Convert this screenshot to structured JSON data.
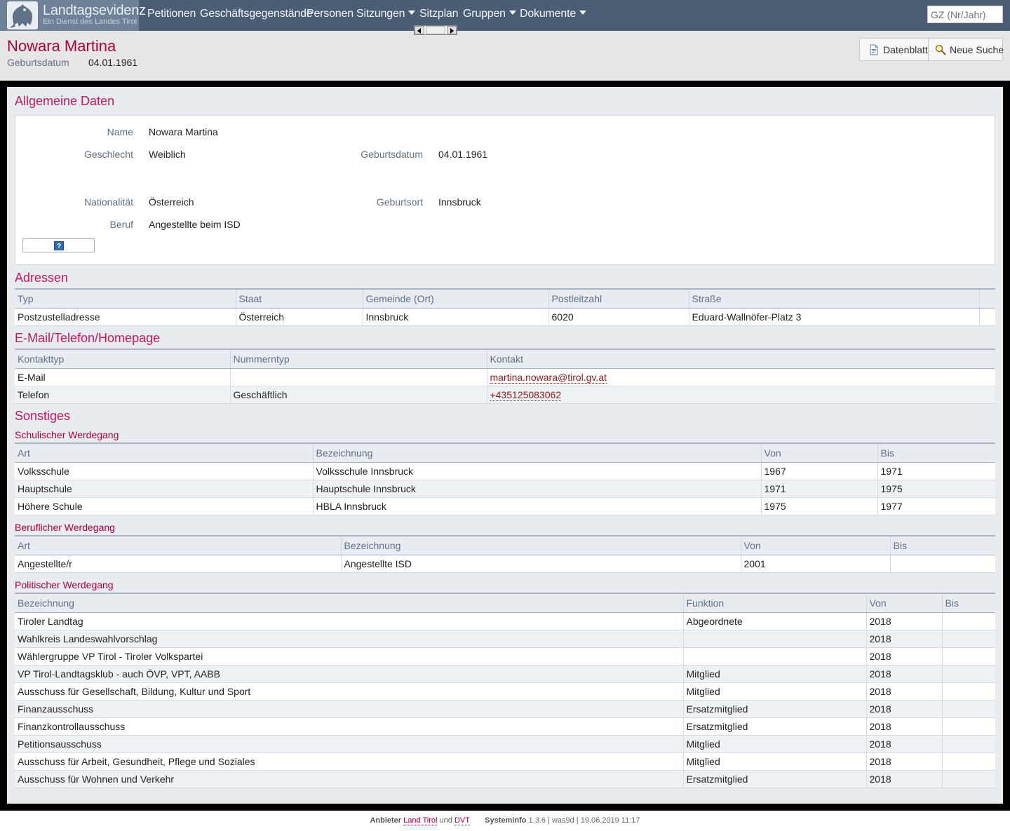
{
  "brand": {
    "title": "Landtagsevidenz",
    "subtitle": "Ein Dienst des Landes Tirol"
  },
  "nav": {
    "items": [
      {
        "label": "Petitionen",
        "dropdown": false
      },
      {
        "label": "Geschäftsgegenstände",
        "dropdown": false
      },
      {
        "label": "Personen",
        "dropdown": false
      },
      {
        "label": "Sitzungen",
        "dropdown": true
      },
      {
        "label": "Sitzplan",
        "dropdown": false
      },
      {
        "label": "Gruppen",
        "dropdown": true
      },
      {
        "label": "Dokumente",
        "dropdown": true
      }
    ],
    "search_placeholder": "GZ (Nr/Jahr)"
  },
  "header": {
    "name": "Nowara Martina",
    "birth_label": "Geburtsdatum",
    "birth_value": "04.01.1961",
    "btn_datenblatt": "Datenblatt",
    "btn_neue_suche": "Neue Suche"
  },
  "allgemein": {
    "title": "Allgemeine Daten",
    "name_label": "Name",
    "name_value": "Nowara Martina",
    "geschlecht_label": "Geschlecht",
    "geschlecht_value": "Weiblich",
    "geburtsdatum_label": "Geburtsdatum",
    "geburtsdatum_value": "04.01.1961",
    "nationalitaet_label": "Nationalität",
    "nationalitaet_value": "Österreich",
    "geburtsort_label": "Geburtsort",
    "geburtsort_value": "Innsbruck",
    "beruf_label": "Beruf",
    "beruf_value": "Angestellte beim ISD",
    "help": "?"
  },
  "adressen": {
    "title": "Adressen",
    "headers": [
      "Typ",
      "Staat",
      "Gemeinde (Ort)",
      "Postleitzahl",
      "Straße"
    ],
    "rows": [
      [
        "Postzustelladresse",
        "Österreich",
        "Innsbruck",
        "6020",
        "Eduard-Wallnöfer-Platz 3"
      ]
    ]
  },
  "kontakt": {
    "title": "E-Mail/Telefon/Homepage",
    "headers": [
      "Kontakttyp",
      "Nummerntyp",
      "Kontakt"
    ],
    "rows": [
      [
        "E-Mail",
        "",
        "martina.nowara@tirol.gv.at"
      ],
      [
        "Telefon",
        "Geschäftlich",
        "+435125083062"
      ]
    ]
  },
  "sonstiges": {
    "title": "Sonstiges"
  },
  "schulisch": {
    "title": "Schulischer Werdegang",
    "headers": [
      "Art",
      "Bezeichnung",
      "Von",
      "Bis"
    ],
    "rows": [
      [
        "Volksschule",
        "Volksschule Innsbruck",
        "1967",
        "1971"
      ],
      [
        "Hauptschule",
        "Hauptschule Innsbruck",
        "1971",
        "1975"
      ],
      [
        "Höhere Schule",
        "HBLA Innsbruck",
        "1975",
        "1977"
      ]
    ]
  },
  "beruflich": {
    "title": "Beruflicher Werdegang",
    "headers": [
      "Art",
      "Bezeichnung",
      "Von",
      "Bis"
    ],
    "rows": [
      [
        "Angestellte/r",
        "Angestellte ISD",
        "2001",
        ""
      ]
    ]
  },
  "politisch": {
    "title": "Politischer Werdegang",
    "headers": [
      "Bezeichnung",
      "Funktion",
      "Von",
      "Bis"
    ],
    "rows": [
      [
        "Tiroler Landtag",
        "Abgeordnete",
        "2018",
        ""
      ],
      [
        "Wahlkreis Landeswahlvorschlag",
        "",
        "2018",
        ""
      ],
      [
        "Wählergruppe VP Tirol - Tiroler Volkspartei",
        "",
        "2018",
        ""
      ],
      [
        "VP Tirol-Landtagsklub - auch ÖVP, VPT, AABB",
        "Mitglied",
        "2018",
        ""
      ],
      [
        "Ausschuss für Gesellschaft, Bildung, Kultur und Sport",
        "Mitglied",
        "2018",
        ""
      ],
      [
        "Finanzausschuss",
        "Ersatzmitglied",
        "2018",
        ""
      ],
      [
        "Finanzkontrollausschuss",
        "Ersatzmitglied",
        "2018",
        ""
      ],
      [
        "Petitionsausschuss",
        "Mitglied",
        "2018",
        ""
      ],
      [
        "Ausschuss für Arbeit, Gesundheit, Pflege und Soziales",
        "Mitglied",
        "2018",
        ""
      ],
      [
        "Ausschuss für Wohnen und Verkehr",
        "Ersatzmitglied",
        "2018",
        ""
      ]
    ]
  },
  "footer": {
    "anbieter_label": "Anbieter",
    "land_tirol": "Land Tirol",
    "und": "und",
    "dvt": "DVT",
    "systeminfo_label": "Systeminfo",
    "systeminfo_value": "1.3.6 | was9d | 19.06.2019 11:17"
  }
}
